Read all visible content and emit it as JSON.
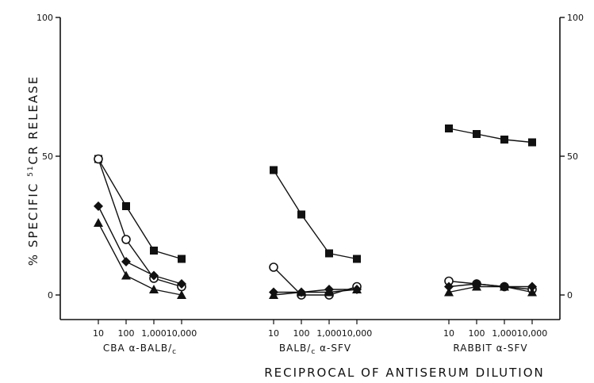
{
  "chart_data": {
    "type": "line",
    "ylabel_parts": [
      "% SPECIFIC ",
      "51",
      "CR RELEASE"
    ],
    "xlabel": "RECIPROCAL OF ANTISERUM DILUTION",
    "ylim": [
      0,
      100
    ],
    "yticks": [
      "0",
      "50",
      "100"
    ],
    "x_scale": "log",
    "xticks": [
      "10",
      "100",
      "1,000",
      "10,000"
    ],
    "groups": [
      {
        "label_parts": [
          "CBA ",
          "α",
          "-BALB",
          "/",
          "c"
        ],
        "series": [
          {
            "marker": "square-filled",
            "x": [
              10,
              100,
              1000,
              10000
            ],
            "y": [
              49,
              32,
              16,
              13
            ]
          },
          {
            "marker": "circle-open",
            "x": [
              10,
              100,
              1000,
              10000
            ],
            "y": [
              49,
              20,
              6,
              3
            ]
          },
          {
            "marker": "diamond-filled",
            "x": [
              10,
              100,
              1000,
              10000
            ],
            "y": [
              32,
              12,
              7,
              4
            ]
          },
          {
            "marker": "triangle-filled",
            "x": [
              10,
              100,
              1000,
              10000
            ],
            "y": [
              26,
              7,
              2,
              0
            ]
          }
        ]
      },
      {
        "label_parts": [
          "BALB",
          "/",
          "c",
          " α",
          "-SFV"
        ],
        "series": [
          {
            "marker": "square-filled",
            "x": [
              10,
              100,
              1000,
              10000
            ],
            "y": [
              45,
              29,
              15,
              13
            ]
          },
          {
            "marker": "circle-open",
            "x": [
              10,
              100,
              1000,
              10000
            ],
            "y": [
              10,
              0,
              0,
              3
            ]
          },
          {
            "marker": "diamond-filled",
            "x": [
              10,
              100,
              1000,
              10000
            ],
            "y": [
              1,
              1,
              2,
              2
            ]
          },
          {
            "marker": "triangle-filled",
            "x": [
              10,
              100,
              1000,
              10000
            ],
            "y": [
              0,
              1,
              1,
              2
            ]
          }
        ]
      },
      {
        "label_parts": [
          "RABBIT ",
          "α",
          "-SFV"
        ],
        "series": [
          {
            "marker": "square-filled",
            "x": [
              10,
              100,
              1000,
              10000
            ],
            "y": [
              60,
              58,
              56,
              55
            ]
          },
          {
            "marker": "circle-open",
            "x": [
              10,
              100,
              1000,
              10000
            ],
            "y": [
              5,
              4,
              3,
              2
            ]
          },
          {
            "marker": "diamond-filled",
            "x": [
              10,
              100,
              1000,
              10000
            ],
            "y": [
              3,
              4,
              3,
              3
            ]
          },
          {
            "marker": "triangle-filled",
            "x": [
              10,
              100,
              1000,
              10000
            ],
            "y": [
              1,
              3,
              3,
              1
            ]
          }
        ]
      }
    ]
  }
}
